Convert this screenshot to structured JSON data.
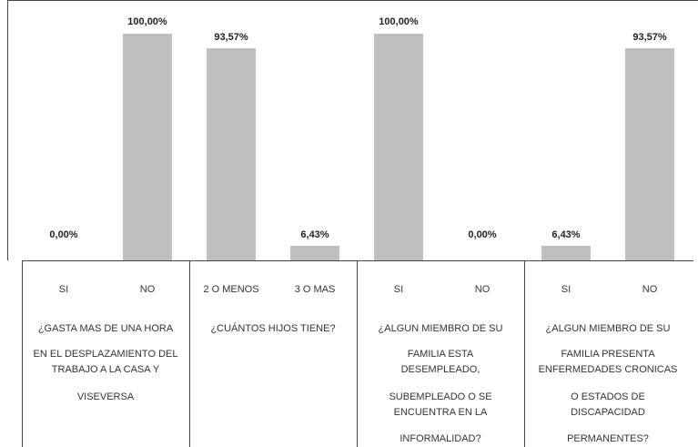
{
  "chart_data": {
    "type": "bar",
    "categories": [
      "SI",
      "NO",
      "2 O MENOS",
      "3 O MAS",
      "SI",
      "NO",
      "SI",
      "NO"
    ],
    "values": [
      0,
      100,
      93.57,
      6.43,
      100,
      0,
      6.43,
      93.57
    ],
    "value_labels": [
      "0,00%",
      "100,00%",
      "93,57%",
      "6,43%",
      "100,00%",
      "0,00%",
      "6,43%",
      "93,57%"
    ],
    "color": "#bfbfbf",
    "groups": [
      {
        "lines": [
          "¿GASTA MAS DE UNA HORA",
          "EN EL DESPLAZAMIENTO DEL",
          "TRABAJO A LA CASA Y",
          "VISEVERSA"
        ]
      },
      {
        "lines": [
          "¿CUÁNTOS HIJOS TIENE?"
        ]
      },
      {
        "lines": [
          "¿ALGUN MIEMBRO DE SU",
          "FAMILIA ESTA",
          "DESEMPLEADO,",
          "SUBEMPLEADO O SE",
          "ENCUENTRA EN LA",
          "INFORMALIDAD?"
        ]
      },
      {
        "lines": [
          "¿ALGUN MIEMBRO DE SU",
          "FAMILIA PRESENTA",
          "ENFERMEDADES CRONICAS",
          "O ESTADOS DE",
          "DISCAPACIDAD",
          "PERMANENTES?"
        ]
      }
    ]
  }
}
